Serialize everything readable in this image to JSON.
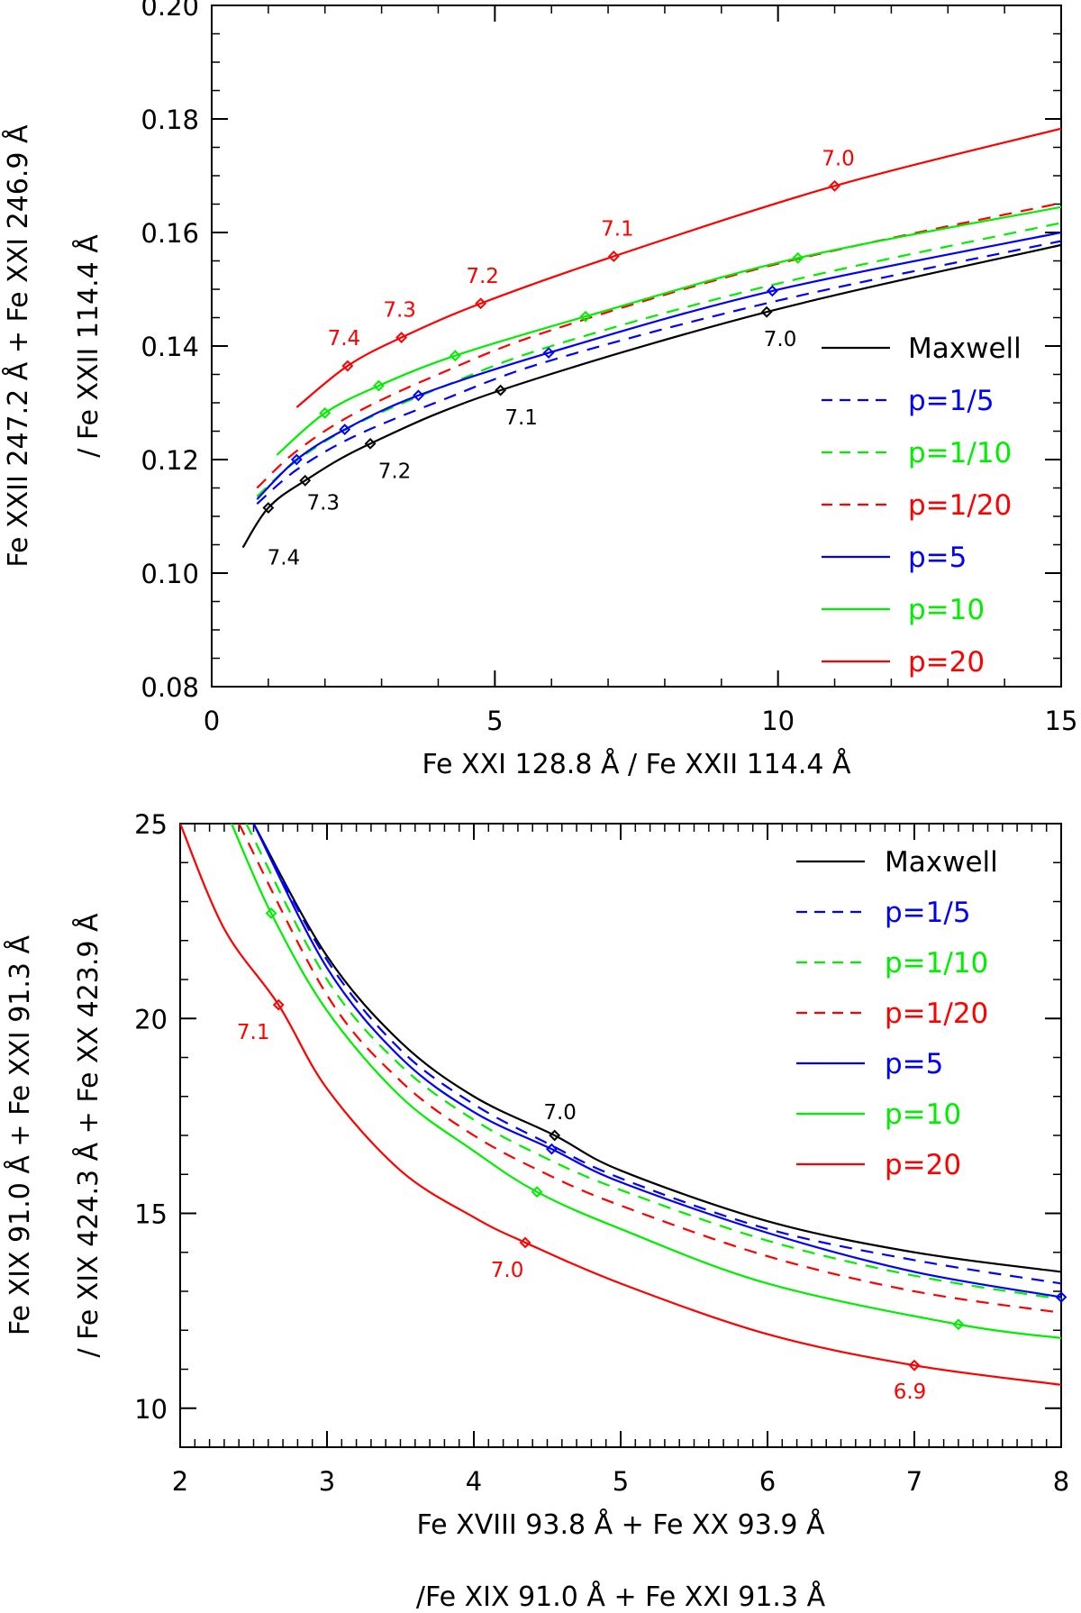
{
  "chart_data": [
    {
      "type": "line",
      "xlabel": "Fe XXI 128.8 Å / Fe XXII 114.4 Å",
      "ylabel_lines": [
        "Fe XXII 247.2 Å + Fe XXI 246.9 Å",
        "/ Fe XXII 114.4 Å"
      ],
      "xlim": [
        0,
        15
      ],
      "ylim": [
        0.08,
        0.2
      ],
      "xticks": [
        0,
        5,
        10,
        15
      ],
      "xtick_labels": [
        "0",
        "5",
        "10",
        "15"
      ],
      "yticks": [
        0.08,
        0.1,
        0.12,
        0.14,
        0.16,
        0.18,
        0.2
      ],
      "ytick_labels": [
        "0.08",
        "0.10",
        "0.12",
        "0.14",
        "0.16",
        "0.18",
        "0.20"
      ],
      "legend_position": "right",
      "series": [
        {
          "name": "Maxwell",
          "color": "#000000",
          "dash": "solid",
          "x": [
            0.55,
            1.0,
            1.65,
            2.8,
            5.1,
            9.8,
            15.0
          ],
          "y": [
            0.1045,
            0.1115,
            0.1163,
            0.1228,
            0.1322,
            0.146,
            0.1578
          ],
          "markers_x": [
            1.0,
            1.65,
            2.8,
            5.1,
            9.8
          ],
          "markers_y": [
            0.1115,
            0.1163,
            0.1228,
            0.1322,
            0.146
          ],
          "marker_labels": [
            "7.4",
            "7.3",
            "7.2",
            "7.1",
            "7.0"
          ]
        },
        {
          "name": "p=1/5",
          "color": "#0000ff",
          "dash": "dashed",
          "x": [
            0.8,
            1.5,
            2.5,
            4.0,
            6.0,
            10.0,
            15.0
          ],
          "y": [
            0.1122,
            0.1182,
            0.124,
            0.1302,
            0.1375,
            0.148,
            0.1585
          ],
          "markers_x": [],
          "markers_y": [],
          "marker_labels": []
        },
        {
          "name": "p=1/10",
          "color": "#00ee00",
          "dash": "dashed",
          "x": [
            0.8,
            1.5,
            2.5,
            4.0,
            6.0,
            10.0,
            15.0
          ],
          "y": [
            0.1135,
            0.1198,
            0.126,
            0.1325,
            0.14,
            0.151,
            0.1617
          ],
          "markers_x": [],
          "markers_y": [],
          "marker_labels": []
        },
        {
          "name": "p=1/20",
          "color": "#ff0000",
          "dash": "dashed",
          "x": [
            0.8,
            1.5,
            2.5,
            4.0,
            6.0,
            10.0,
            15.0
          ],
          "y": [
            0.115,
            0.1215,
            0.128,
            0.135,
            0.1428,
            0.1545,
            0.1652
          ],
          "markers_x": [],
          "markers_y": [],
          "marker_labels": []
        },
        {
          "name": "p=5",
          "color": "#0000ff",
          "dash": "solid",
          "x": [
            0.8,
            1.5,
            2.35,
            3.65,
            5.95,
            9.9,
            15.0
          ],
          "y": [
            0.113,
            0.12,
            0.1253,
            0.1313,
            0.1388,
            0.1497,
            0.16
          ],
          "markers_x": [
            1.5,
            2.35,
            3.65,
            5.95,
            9.9
          ],
          "markers_y": [
            0.12,
            0.1253,
            0.1313,
            0.1388,
            0.1497
          ],
          "marker_labels": []
        },
        {
          "name": "p=10",
          "color": "#00ee00",
          "dash": "solid",
          "x": [
            1.15,
            2.0,
            2.95,
            4.3,
            6.6,
            10.35,
            15.0
          ],
          "y": [
            0.1208,
            0.1282,
            0.133,
            0.1383,
            0.1452,
            0.1555,
            0.1645
          ],
          "markers_x": [
            2.0,
            2.95,
            4.3,
            6.6,
            10.35
          ],
          "markers_y": [
            0.1282,
            0.133,
            0.1383,
            0.1452,
            0.1555
          ],
          "marker_labels": []
        },
        {
          "name": "p=20",
          "color": "#ff0000",
          "dash": "solid",
          "x": [
            1.5,
            2.4,
            3.35,
            4.75,
            7.1,
            11.0,
            15.0
          ],
          "y": [
            0.1292,
            0.1365,
            0.1415,
            0.1475,
            0.1558,
            0.1682,
            0.1783
          ],
          "markers_x": [
            2.4,
            3.35,
            4.75,
            7.1,
            11.0
          ],
          "markers_y": [
            0.1365,
            0.1415,
            0.1475,
            0.1558,
            0.1682
          ],
          "marker_labels": [
            "7.4",
            "7.3",
            "7.2",
            "7.1",
            "7.0"
          ]
        }
      ]
    },
    {
      "type": "line",
      "xlabel_lines": [
        "Fe XVIII 93.8 Å + Fe XX 93.9 Å",
        "/Fe XIX 91.0 Å + Fe XXI 91.3 Å"
      ],
      "ylabel_lines": [
        "Fe XIX 91.0 Å + Fe XXI 91.3 Å",
        "/ Fe XIX 424.3 Å + Fe XX 423.9 Å"
      ],
      "xlim": [
        2,
        8
      ],
      "ylim": [
        9,
        25
      ],
      "xticks": [
        2,
        3,
        4,
        5,
        6,
        7,
        8
      ],
      "xtick_labels": [
        "2",
        "3",
        "4",
        "5",
        "6",
        "7",
        "8"
      ],
      "yticks": [
        10,
        15,
        20,
        25
      ],
      "ytick_labels": [
        "10",
        "15",
        "20",
        "25"
      ],
      "legend_position": "top-right",
      "series": [
        {
          "name": "Maxwell",
          "color": "#000000",
          "dash": "solid",
          "x": [
            2.5,
            3.0,
            3.5,
            4.0,
            4.55,
            5.0,
            6.0,
            7.0,
            8.0
          ],
          "y": [
            25.0,
            21.6,
            19.4,
            18.0,
            17.0,
            16.1,
            14.8,
            14.0,
            13.5
          ],
          "markers_x": [
            4.55
          ],
          "markers_y": [
            17.0
          ],
          "marker_labels": [
            "7.0"
          ]
        },
        {
          "name": "p=1/5",
          "color": "#0000ff",
          "dash": "dashed",
          "x": [
            2.5,
            3.0,
            3.5,
            4.0,
            4.5,
            5.0,
            6.0,
            7.0,
            8.0
          ],
          "y": [
            25.0,
            21.5,
            19.2,
            17.8,
            16.8,
            15.9,
            14.6,
            13.8,
            13.2
          ],
          "markers_x": [],
          "markers_y": [],
          "marker_labels": []
        },
        {
          "name": "p=1/10",
          "color": "#00ee00",
          "dash": "dashed",
          "x": [
            2.45,
            3.0,
            3.5,
            4.0,
            4.5,
            5.0,
            6.0,
            7.0,
            8.0
          ],
          "y": [
            25.0,
            21.0,
            18.8,
            17.4,
            16.4,
            15.6,
            14.3,
            13.4,
            12.8
          ],
          "markers_x": [],
          "markers_y": [],
          "marker_labels": []
        },
        {
          "name": "p=1/20",
          "color": "#ff0000",
          "dash": "dashed",
          "x": [
            2.4,
            3.0,
            3.5,
            4.0,
            4.5,
            5.0,
            6.0,
            7.0,
            8.0
          ],
          "y": [
            25.0,
            20.6,
            18.4,
            17.0,
            16.0,
            15.2,
            13.9,
            13.0,
            12.45
          ],
          "markers_x": [],
          "markers_y": [],
          "marker_labels": []
        },
        {
          "name": "p=5",
          "color": "#0000ff",
          "dash": "solid",
          "x": [
            2.5,
            3.0,
            3.5,
            4.0,
            4.53,
            5.0,
            6.0,
            7.0,
            8.0
          ],
          "y": [
            25.0,
            21.3,
            19.0,
            17.6,
            16.65,
            15.8,
            14.5,
            13.5,
            12.85
          ],
          "markers_x": [
            4.53,
            8.0
          ],
          "markers_y": [
            16.65,
            12.85
          ],
          "marker_labels": []
        },
        {
          "name": "p=10",
          "color": "#00ee00",
          "dash": "solid",
          "x": [
            2.35,
            2.62,
            3.0,
            3.5,
            4.0,
            4.43,
            5.0,
            6.0,
            7.3,
            8.0
          ],
          "y": [
            25.0,
            22.7,
            20.2,
            18.0,
            16.6,
            15.55,
            14.6,
            13.2,
            12.15,
            11.8
          ],
          "markers_x": [
            2.62,
            4.43,
            7.3
          ],
          "markers_y": [
            22.7,
            15.55,
            12.15
          ],
          "marker_labels": []
        },
        {
          "name": "p=20",
          "color": "#ff0000",
          "dash": "solid",
          "x": [
            2.0,
            2.3,
            2.67,
            3.0,
            3.5,
            4.0,
            4.35,
            5.0,
            6.0,
            7.0,
            8.0
          ],
          "y": [
            25.0,
            22.3,
            20.35,
            18.2,
            16.1,
            14.9,
            14.25,
            13.2,
            11.9,
            11.1,
            10.6
          ],
          "markers_x": [
            2.67,
            4.35,
            7.0
          ],
          "markers_y": [
            20.35,
            14.25,
            11.1
          ],
          "marker_labels": [
            "7.1",
            "7.0",
            "6.9"
          ]
        }
      ]
    }
  ]
}
